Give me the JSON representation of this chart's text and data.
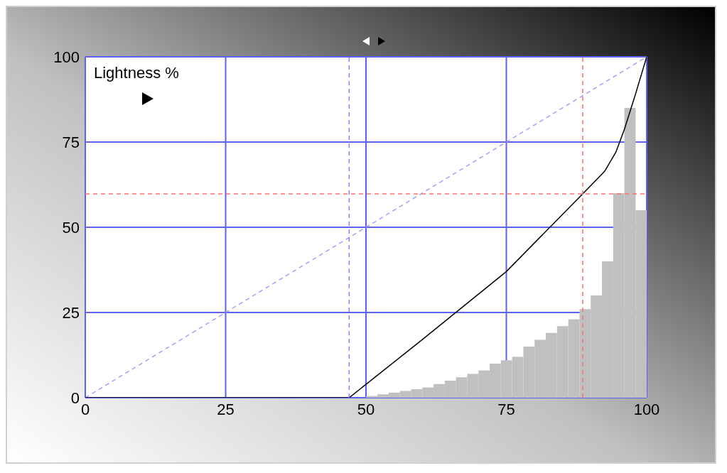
{
  "chart_data": {
    "type": "line",
    "title": "Lightness %",
    "xlim": [
      0,
      100
    ],
    "xticks": [
      0,
      25,
      50,
      75,
      100
    ],
    "ylim": [
      0,
      100
    ],
    "yticks": [
      0,
      25,
      50,
      75,
      100
    ],
    "grid": true,
    "series": [
      {
        "type": "histogram",
        "color": "#c0c0c0",
        "bins": [
          50,
          52,
          54,
          56,
          58,
          60,
          62,
          64,
          66,
          68,
          70,
          72,
          74,
          76,
          78,
          80,
          82,
          84,
          86,
          88,
          90,
          92,
          94,
          96,
          98,
          100
        ],
        "values": [
          0.5,
          1,
          1.5,
          2,
          2.5,
          3,
          4,
          5,
          6,
          7,
          8,
          10,
          11,
          12,
          15,
          17,
          19,
          21,
          23,
          26,
          30,
          40,
          60,
          85,
          55
        ]
      },
      {
        "color": "#a0a0ff",
        "line_style": "dashed",
        "x": [
          0,
          100
        ],
        "values": [
          0,
          100
        ]
      },
      {
        "color": "#000000",
        "line_style": "solid",
        "x": [
          0,
          47,
          60,
          75,
          88.6,
          92.5,
          94.5,
          96,
          98,
          100
        ],
        "values": [
          0,
          0,
          17,
          37,
          59.8,
          66.4,
          72,
          78.6,
          89,
          100
        ]
      }
    ],
    "ref_lines": [
      {
        "axis": "x",
        "value": 47,
        "color": "#8080ff",
        "line_style": "dashed"
      },
      {
        "axis": "x",
        "value": 88.6,
        "color": "#ff7070",
        "line_style": "dashed"
      },
      {
        "axis": "y",
        "value": 59.8,
        "color": "#ff7070",
        "line_style": "dashed"
      }
    ]
  }
}
